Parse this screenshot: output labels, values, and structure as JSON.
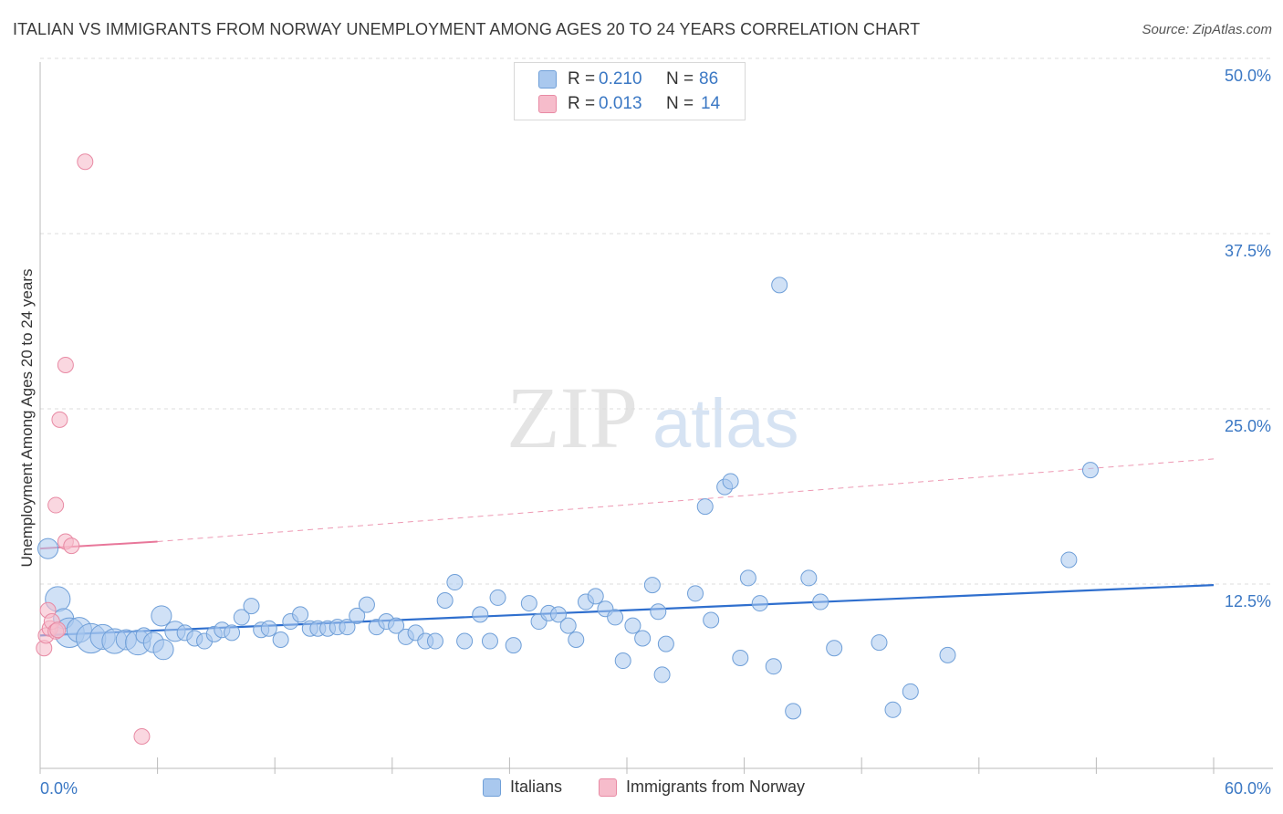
{
  "title": "ITALIAN VS IMMIGRANTS FROM NORWAY UNEMPLOYMENT AMONG AGES 20 TO 24 YEARS CORRELATION CHART",
  "source": "Source: ZipAtlas.com",
  "watermark": {
    "zip": "ZIP",
    "atlas": "atlas"
  },
  "colors": {
    "italians_fill": "#a9c8ee",
    "italians_stroke": "#6f9fd8",
    "italians_line": "#2f6fce",
    "norway_fill": "#f6bccb",
    "norway_stroke": "#e88aa4",
    "norway_line": "#e8779a",
    "tick_label": "#3b78c4",
    "grid": "#dddddd"
  },
  "legend_top": {
    "rows": [
      {
        "r_label": "R = ",
        "r_value": "0.210",
        "n_label": "N = ",
        "n_value": "86"
      },
      {
        "r_label": "R = ",
        "r_value": "0.013",
        "n_label": "N = ",
        "n_value": "14"
      }
    ]
  },
  "legend_bottom": {
    "italians": "Italians",
    "norway": "Immigrants from Norway"
  },
  "chart_data": {
    "type": "scatter",
    "title": "ITALIAN VS IMMIGRANTS FROM NORWAY UNEMPLOYMENT AMONG AGES 20 TO 24 YEARS CORRELATION CHART",
    "xlabel": "",
    "ylabel": "Unemployment Among Ages 20 to 24 years",
    "xlim": [
      0,
      60
    ],
    "ylim": [
      0,
      52
    ],
    "x_tick_labels": [
      "0.0%",
      "60.0%"
    ],
    "y_ticks": [
      12.5,
      25.0,
      37.5,
      50.0
    ],
    "y_tick_labels": [
      "12.5%",
      "25.0%",
      "37.5%",
      "50.0%"
    ],
    "x_minor_ticks": [
      0,
      6,
      12,
      18,
      24,
      30,
      36,
      42,
      48,
      54,
      60
    ],
    "grid": true,
    "series": [
      {
        "name": "Italians",
        "r": 0.21,
        "n": 86,
        "trend": {
          "x0": 0,
          "y0": 10.0,
          "x1": 60,
          "y1": 13.6
        },
        "points": [
          [
            0.4,
            16.2,
            1.3
          ],
          [
            0.9,
            12.6,
            1.6
          ],
          [
            1.2,
            11.2,
            1.3
          ],
          [
            1.5,
            10.2,
            1.9
          ],
          [
            2.0,
            10.4,
            1.6
          ],
          [
            2.6,
            9.8,
            1.9
          ],
          [
            3.2,
            9.9,
            1.6
          ],
          [
            3.8,
            9.6,
            1.6
          ],
          [
            4.4,
            9.7,
            1.3
          ],
          [
            5.0,
            9.5,
            1.6
          ],
          [
            5.3,
            10.0,
            1.0
          ],
          [
            5.8,
            9.5,
            1.3
          ],
          [
            6.2,
            11.4,
            1.3
          ],
          [
            6.3,
            9.0,
            1.3
          ],
          [
            6.9,
            10.3,
            1.3
          ],
          [
            7.4,
            10.2,
            1.0
          ],
          [
            7.9,
            9.8,
            1.0
          ],
          [
            8.4,
            9.6,
            1.0
          ],
          [
            8.9,
            10.1,
            1.0
          ],
          [
            9.3,
            10.4,
            1.0
          ],
          [
            9.8,
            10.2,
            1.0
          ],
          [
            10.3,
            11.3,
            1.0
          ],
          [
            10.8,
            12.1,
            1.0
          ],
          [
            11.3,
            10.4,
            1.0
          ],
          [
            11.7,
            10.5,
            1.0
          ],
          [
            12.3,
            9.7,
            1.0
          ],
          [
            12.8,
            11.0,
            1.0
          ],
          [
            13.3,
            11.5,
            1.0
          ],
          [
            13.8,
            10.5,
            1.0
          ],
          [
            14.2,
            10.5,
            1.0
          ],
          [
            14.7,
            10.5,
            1.0
          ],
          [
            15.2,
            10.6,
            1.0
          ],
          [
            15.7,
            10.6,
            1.0
          ],
          [
            16.2,
            11.4,
            1.0
          ],
          [
            16.7,
            12.2,
            1.0
          ],
          [
            17.2,
            10.6,
            1.0
          ],
          [
            17.7,
            11.0,
            1.0
          ],
          [
            18.2,
            10.7,
            1.0
          ],
          [
            18.7,
            9.9,
            1.0
          ],
          [
            19.2,
            10.2,
            1.0
          ],
          [
            19.7,
            9.6,
            1.0
          ],
          [
            20.2,
            9.6,
            1.0
          ],
          [
            20.7,
            12.5,
            1.0
          ],
          [
            21.2,
            13.8,
            1.0
          ],
          [
            21.7,
            9.6,
            1.0
          ],
          [
            22.5,
            11.5,
            1.0
          ],
          [
            23.0,
            9.6,
            1.0
          ],
          [
            23.4,
            12.7,
            1.0
          ],
          [
            24.2,
            9.3,
            1.0
          ],
          [
            25.0,
            12.3,
            1.0
          ],
          [
            25.5,
            11.0,
            1.0
          ],
          [
            26.0,
            11.6,
            1.0
          ],
          [
            26.5,
            11.5,
            1.0
          ],
          [
            27.0,
            10.7,
            1.0
          ],
          [
            27.4,
            9.7,
            1.0
          ],
          [
            27.9,
            12.4,
            1.0
          ],
          [
            28.4,
            12.8,
            1.0
          ],
          [
            28.9,
            11.9,
            1.0
          ],
          [
            29.4,
            11.3,
            1.0
          ],
          [
            29.8,
            8.2,
            1.0
          ],
          [
            30.3,
            10.7,
            1.0
          ],
          [
            30.8,
            9.8,
            1.0
          ],
          [
            31.3,
            13.6,
            1.0
          ],
          [
            31.6,
            11.7,
            1.0
          ],
          [
            31.8,
            7.2,
            1.0
          ],
          [
            32.0,
            9.4,
            1.0
          ],
          [
            33.5,
            13.0,
            1.0
          ],
          [
            34.0,
            19.2,
            1.0
          ],
          [
            34.3,
            11.1,
            1.0
          ],
          [
            35.0,
            20.6,
            1.0
          ],
          [
            35.3,
            21.0,
            1.0
          ],
          [
            35.8,
            8.4,
            1.0
          ],
          [
            36.2,
            14.1,
            1.0
          ],
          [
            36.8,
            12.3,
            1.0
          ],
          [
            37.5,
            7.8,
            1.0
          ],
          [
            37.8,
            35.0,
            1.0
          ],
          [
            38.5,
            4.6,
            1.0
          ],
          [
            39.3,
            14.1,
            1.0
          ],
          [
            39.9,
            12.4,
            1.0
          ],
          [
            40.6,
            9.1,
            1.0
          ],
          [
            42.9,
            9.5,
            1.0
          ],
          [
            43.6,
            4.7,
            1.0
          ],
          [
            44.5,
            6.0,
            1.0
          ],
          [
            46.4,
            8.6,
            1.0
          ],
          [
            52.6,
            15.4,
            1.0
          ],
          [
            53.7,
            21.8,
            1.0
          ]
        ]
      },
      {
        "name": "Immigrants from Norway",
        "r": 0.013,
        "n": 14,
        "trend": {
          "solid": {
            "x0": 0,
            "y0": 16.2,
            "x1": 6,
            "y1": 16.7
          },
          "dashed": {
            "x0": 6,
            "y0": 16.7,
            "x1": 60,
            "y1": 22.6
          }
        },
        "points": [
          [
            0.2,
            9.1
          ],
          [
            0.3,
            10.0
          ],
          [
            0.4,
            11.8
          ],
          [
            0.5,
            10.5
          ],
          [
            0.6,
            11.0
          ],
          [
            0.8,
            10.3
          ],
          [
            0.9,
            10.4
          ],
          [
            0.8,
            19.3
          ],
          [
            1.0,
            25.4
          ],
          [
            1.3,
            29.3
          ],
          [
            1.3,
            16.7
          ],
          [
            1.6,
            16.4
          ],
          [
            2.3,
            43.8
          ],
          [
            5.2,
            2.8
          ]
        ]
      }
    ]
  }
}
